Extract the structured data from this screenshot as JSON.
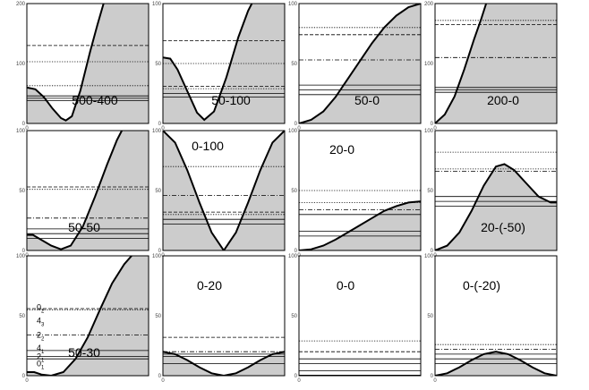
{
  "chart_data": [
    {
      "type": "area",
      "label": "500-400",
      "ylim": [
        0,
        200
      ],
      "yticks": [
        "0",
        "100",
        "200"
      ],
      "xticks": [
        "0",
        "",
        ""
      ],
      "curve": [
        [
          0,
          60
        ],
        [
          0.07,
          57
        ],
        [
          0.14,
          44
        ],
        [
          0.21,
          25
        ],
        [
          0.28,
          9
        ],
        [
          0.32,
          5
        ],
        [
          0.37,
          12
        ],
        [
          0.44,
          55
        ],
        [
          0.52,
          120
        ],
        [
          0.58,
          165
        ],
        [
          0.63,
          200
        ]
      ],
      "levels": [
        {
          "y": 38,
          "style": "solid"
        },
        {
          "y": 42,
          "style": "solid"
        },
        {
          "y": 46,
          "style": "solid"
        },
        {
          "y": 63,
          "style": "dotted"
        },
        {
          "y": 103,
          "style": "dotted"
        },
        {
          "y": 130,
          "style": "dashed"
        }
      ],
      "level_labels": []
    },
    {
      "type": "area",
      "label": "50-100",
      "ylim": [
        0,
        100
      ],
      "yticks": [
        "0",
        "50",
        "100"
      ],
      "xticks": [
        "0",
        "",
        ""
      ],
      "curve": [
        [
          0,
          55
        ],
        [
          0.06,
          54
        ],
        [
          0.12,
          45
        ],
        [
          0.2,
          27
        ],
        [
          0.28,
          9
        ],
        [
          0.34,
          3
        ],
        [
          0.42,
          10
        ],
        [
          0.52,
          38
        ],
        [
          0.62,
          72
        ],
        [
          0.7,
          94
        ],
        [
          0.73,
          100
        ]
      ],
      "levels": [
        {
          "y": 22,
          "style": "solid"
        },
        {
          "y": 25,
          "style": "solid"
        },
        {
          "y": 29,
          "style": "dotted"
        },
        {
          "y": 31,
          "style": "dashed"
        },
        {
          "y": 50,
          "style": "dotted"
        },
        {
          "y": 69,
          "style": "dashed"
        }
      ],
      "level_labels": []
    },
    {
      "type": "area",
      "label": "50-0",
      "ylim": [
        0,
        100
      ],
      "yticks": [
        "0",
        "50",
        "100"
      ],
      "xticks": [
        "0",
        "",
        ""
      ],
      "curve": [
        [
          0,
          0
        ],
        [
          0.1,
          3
        ],
        [
          0.2,
          10
        ],
        [
          0.3,
          22
        ],
        [
          0.4,
          37
        ],
        [
          0.5,
          52
        ],
        [
          0.6,
          67
        ],
        [
          0.7,
          80
        ],
        [
          0.8,
          90
        ],
        [
          0.9,
          97
        ],
        [
          1,
          100
        ]
      ],
      "levels": [
        {
          "y": 24,
          "style": "solid"
        },
        {
          "y": 28,
          "style": "solid"
        },
        {
          "y": 32,
          "style": "solid"
        },
        {
          "y": 53,
          "style": "dashdot"
        },
        {
          "y": 74,
          "style": "dashed"
        },
        {
          "y": 80,
          "style": "dotted"
        }
      ],
      "level_labels": []
    },
    {
      "type": "area",
      "label": "200-0",
      "ylim": [
        0,
        200
      ],
      "yticks": [
        "0",
        "100",
        "200"
      ],
      "xticks": [
        "0",
        "",
        ""
      ],
      "curve": [
        [
          0,
          0
        ],
        [
          0.08,
          15
        ],
        [
          0.16,
          45
        ],
        [
          0.24,
          90
        ],
        [
          0.32,
          140
        ],
        [
          0.38,
          175
        ],
        [
          0.42,
          200
        ]
      ],
      "levels": [
        {
          "y": 52,
          "style": "solid"
        },
        {
          "y": 56,
          "style": "solid"
        },
        {
          "y": 60,
          "style": "solid"
        },
        {
          "y": 110,
          "style": "dashdot"
        },
        {
          "y": 165,
          "style": "dashed"
        },
        {
          "y": 172,
          "style": "dotted"
        }
      ],
      "level_labels": []
    },
    {
      "type": "area",
      "label": "50-50",
      "ylim": [
        0,
        100
      ],
      "yticks": [
        "0",
        "50",
        "100"
      ],
      "xticks": [
        "0",
        "",
        ""
      ],
      "curve": [
        [
          0,
          13
        ],
        [
          0.05,
          13
        ],
        [
          0.1,
          10
        ],
        [
          0.2,
          4
        ],
        [
          0.28,
          1
        ],
        [
          0.36,
          4
        ],
        [
          0.46,
          20
        ],
        [
          0.56,
          45
        ],
        [
          0.66,
          72
        ],
        [
          0.74,
          92
        ],
        [
          0.78,
          100
        ]
      ],
      "levels": [
        {
          "y": 10,
          "style": "solid"
        },
        {
          "y": 14,
          "style": "solid"
        },
        {
          "y": 18,
          "style": "solid"
        },
        {
          "y": 27,
          "style": "dashdot"
        },
        {
          "y": 51,
          "style": "dotted"
        },
        {
          "y": 53,
          "style": "dashed"
        }
      ],
      "level_labels": []
    },
    {
      "type": "area",
      "label": "0-100",
      "ylim": [
        0,
        100
      ],
      "yticks": [
        "0",
        "50",
        "100"
      ],
      "xticks": [
        "0",
        "",
        ""
      ],
      "curve": [
        [
          0,
          100
        ],
        [
          0.1,
          90
        ],
        [
          0.2,
          67
        ],
        [
          0.3,
          40
        ],
        [
          0.4,
          15
        ],
        [
          0.5,
          0
        ],
        [
          0.6,
          15
        ],
        [
          0.7,
          40
        ],
        [
          0.8,
          67
        ],
        [
          0.9,
          90
        ],
        [
          1,
          100
        ]
      ],
      "levels": [
        {
          "y": 22,
          "style": "solid"
        },
        {
          "y": 26,
          "style": "solid"
        },
        {
          "y": 30,
          "style": "dotted"
        },
        {
          "y": 32,
          "style": "dashed"
        },
        {
          "y": 46,
          "style": "dashdot"
        },
        {
          "y": 70,
          "style": "dotted"
        }
      ],
      "level_labels": []
    },
    {
      "type": "area",
      "label": "20-0",
      "ylim": [
        0,
        100
      ],
      "yticks": [
        "0",
        "50",
        "100"
      ],
      "xticks": [
        "0",
        "",
        ""
      ],
      "curve": [
        [
          0,
          0
        ],
        [
          0.1,
          1
        ],
        [
          0.2,
          4
        ],
        [
          0.3,
          9
        ],
        [
          0.4,
          15
        ],
        [
          0.5,
          21
        ],
        [
          0.6,
          27
        ],
        [
          0.7,
          33
        ],
        [
          0.8,
          37
        ],
        [
          0.9,
          40
        ],
        [
          1,
          41
        ]
      ],
      "levels": [
        {
          "y": 12,
          "style": "solid"
        },
        {
          "y": 16,
          "style": "solid"
        },
        {
          "y": 30,
          "style": "solid"
        },
        {
          "y": 34,
          "style": "dashdot"
        },
        {
          "y": 40,
          "style": "dotted"
        },
        {
          "y": 50,
          "style": "dotted"
        }
      ],
      "level_labels": []
    },
    {
      "type": "area",
      "label": "20-(-50)",
      "ylim": [
        0,
        100
      ],
      "yticks": [
        "0",
        "50",
        "100"
      ],
      "xticks": [
        "0",
        "",
        ""
      ],
      "curve": [
        [
          0,
          0
        ],
        [
          0.1,
          4
        ],
        [
          0.2,
          15
        ],
        [
          0.3,
          33
        ],
        [
          0.4,
          54
        ],
        [
          0.5,
          70
        ],
        [
          0.57,
          72
        ],
        [
          0.65,
          67
        ],
        [
          0.75,
          56
        ],
        [
          0.85,
          45
        ],
        [
          0.95,
          40
        ],
        [
          1,
          40
        ]
      ],
      "levels": [
        {
          "y": 37,
          "style": "solid"
        },
        {
          "y": 41,
          "style": "solid"
        },
        {
          "y": 45,
          "style": "solid"
        },
        {
          "y": 66,
          "style": "dashdot"
        },
        {
          "y": 68,
          "style": "dotted"
        },
        {
          "y": 82,
          "style": "dotted"
        }
      ],
      "level_labels": []
    },
    {
      "type": "area",
      "label": "50-30",
      "ylim": [
        0,
        100
      ],
      "yticks": [
        "0",
        "50",
        "100"
      ],
      "xticks": [
        "0",
        "",
        ""
      ],
      "curve": [
        [
          0,
          3
        ],
        [
          0.06,
          3
        ],
        [
          0.12,
          1
        ],
        [
          0.2,
          0
        ],
        [
          0.3,
          3
        ],
        [
          0.4,
          14
        ],
        [
          0.5,
          32
        ],
        [
          0.6,
          55
        ],
        [
          0.7,
          77
        ],
        [
          0.8,
          93
        ],
        [
          0.86,
          100
        ]
      ],
      "levels": [
        {
          "y": 14,
          "style": "solid"
        },
        {
          "y": 16,
          "style": "solid"
        },
        {
          "y": 21,
          "style": "solid"
        },
        {
          "y": 34,
          "style": "dashdot"
        },
        {
          "y": 55,
          "style": "dotted"
        },
        {
          "y": 56,
          "style": "dashed"
        }
      ],
      "level_labels": [
        {
          "text": "0",
          "sub": "1",
          "y": 10
        },
        {
          "text": "2",
          "sub": "1",
          "y": 16
        },
        {
          "text": "4",
          "sub": "1",
          "y": 23
        },
        {
          "text": "2",
          "sub": "2",
          "y": 34
        },
        {
          "text": "4",
          "sub": "3",
          "y": 46
        },
        {
          "text": "0",
          "sub": "2",
          "y": 57
        }
      ]
    },
    {
      "type": "area",
      "label": "0-20",
      "ylim": [
        0,
        100
      ],
      "yticks": [
        "0",
        "50",
        "100"
      ],
      "xticks": [
        "0",
        "",
        ""
      ],
      "curve": [
        [
          0,
          20
        ],
        [
          0.1,
          18
        ],
        [
          0.2,
          13
        ],
        [
          0.3,
          7
        ],
        [
          0.4,
          2
        ],
        [
          0.5,
          0
        ],
        [
          0.6,
          2
        ],
        [
          0.7,
          7
        ],
        [
          0.8,
          13
        ],
        [
          0.9,
          18
        ],
        [
          1,
          20
        ]
      ],
      "levels": [
        {
          "y": 10,
          "style": "solid"
        },
        {
          "y": 16,
          "style": "solid"
        },
        {
          "y": 18,
          "style": "solid"
        },
        {
          "y": 20,
          "style": "dashdot"
        },
        {
          "y": 32,
          "style": "dashed"
        }
      ],
      "level_labels": []
    },
    {
      "type": "area",
      "label": "0-0",
      "ylim": [
        0,
        100
      ],
      "yticks": [
        "0",
        "50",
        "100"
      ],
      "xticks": [
        "0",
        "",
        ""
      ],
      "curve": [
        [
          0,
          0
        ],
        [
          1,
          0
        ]
      ],
      "levels": [
        {
          "y": 4,
          "style": "solid"
        },
        {
          "y": 10,
          "style": "solid"
        },
        {
          "y": 14,
          "style": "solid"
        },
        {
          "y": 20,
          "style": "dashed"
        },
        {
          "y": 29,
          "style": "dotted"
        }
      ],
      "level_labels": []
    },
    {
      "type": "area",
      "label": "0-(-20)",
      "ylim": [
        0,
        100
      ],
      "yticks": [
        "0",
        "50",
        "100"
      ],
      "xticks": [
        "0",
        "",
        ""
      ],
      "curve": [
        [
          0,
          0
        ],
        [
          0.1,
          2
        ],
        [
          0.2,
          7
        ],
        [
          0.3,
          13
        ],
        [
          0.4,
          18
        ],
        [
          0.5,
          20
        ],
        [
          0.6,
          18
        ],
        [
          0.7,
          13
        ],
        [
          0.8,
          7
        ],
        [
          0.9,
          2
        ],
        [
          1,
          0
        ]
      ],
      "levels": [
        {
          "y": 10,
          "style": "solid"
        },
        {
          "y": 14,
          "style": "solid"
        },
        {
          "y": 18,
          "style": "solid"
        },
        {
          "y": 22,
          "style": "dashdot"
        },
        {
          "y": 26,
          "style": "dotted"
        }
      ],
      "level_labels": []
    }
  ]
}
